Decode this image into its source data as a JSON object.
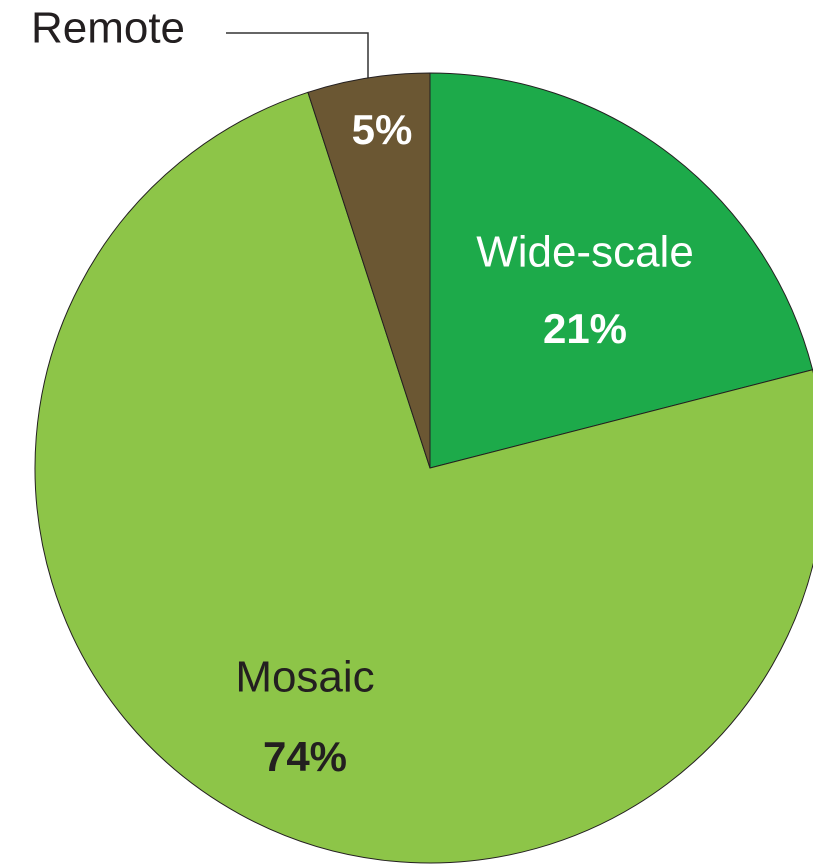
{
  "chart_data": {
    "type": "pie",
    "categories": [
      "Wide-scale",
      "Mosaic",
      "Remote"
    ],
    "values": [
      21,
      74,
      5
    ],
    "value_labels": [
      "21%",
      "74%",
      "5%"
    ],
    "colors": [
      "#1daa4a",
      "#8dc548",
      "#6b5733"
    ]
  }
}
